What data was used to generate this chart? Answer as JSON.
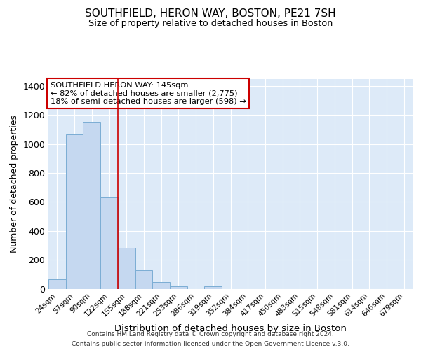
{
  "title": "SOUTHFIELD, HERON WAY, BOSTON, PE21 7SH",
  "subtitle": "Size of property relative to detached houses in Boston",
  "xlabel": "Distribution of detached houses by size in Boston",
  "ylabel": "Number of detached properties",
  "annotation_title": "SOUTHFIELD HERON WAY: 145sqm",
  "annotation_line1": "← 82% of detached houses are smaller (2,775)",
  "annotation_line2": "18% of semi-detached houses are larger (598) →",
  "categories": [
    "24sqm",
    "57sqm",
    "90sqm",
    "122sqm",
    "155sqm",
    "188sqm",
    "221sqm",
    "253sqm",
    "286sqm",
    "319sqm",
    "352sqm",
    "384sqm",
    "417sqm",
    "450sqm",
    "483sqm",
    "515sqm",
    "548sqm",
    "581sqm",
    "614sqm",
    "646sqm",
    "679sqm"
  ],
  "values": [
    63,
    1065,
    1155,
    632,
    285,
    130,
    45,
    18,
    0,
    18,
    0,
    0,
    0,
    0,
    0,
    0,
    0,
    0,
    0,
    0,
    0
  ],
  "bar_color": "#c5d8f0",
  "bar_edge_color": "#7badd4",
  "red_line_x": 3.5,
  "ylim": [
    0,
    1450
  ],
  "yticks": [
    0,
    200,
    400,
    600,
    800,
    1000,
    1200,
    1400
  ],
  "bg_color": "#ffffff",
  "plot_bg_color": "#ddeaf8",
  "grid_color": "#ffffff",
  "footer1": "Contains HM Land Registry data © Crown copyright and database right 2024.",
  "footer2": "Contains public sector information licensed under the Open Government Licence v.3.0."
}
